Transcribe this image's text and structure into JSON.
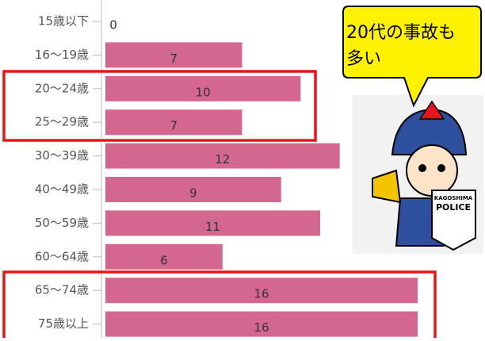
{
  "chart_data": {
    "type": "bar",
    "orientation": "horizontal",
    "categories": [
      "15歳以下",
      "16～19歳",
      "20～24歳",
      "25～29歳",
      "30～39歳",
      "40～49歳",
      "50～59歳",
      "60～64歳",
      "65～74歳",
      "75歳以上"
    ],
    "values": [
      0,
      7,
      10,
      7,
      12,
      9,
      11,
      6,
      16,
      16
    ],
    "color": "#d4678f",
    "xlim": [
      0,
      16.4
    ],
    "annotation": {
      "lines": [
        "20代の事故も",
        "多い"
      ]
    },
    "police_badge": [
      "KAGOSHIMA",
      "POLICE"
    ]
  }
}
